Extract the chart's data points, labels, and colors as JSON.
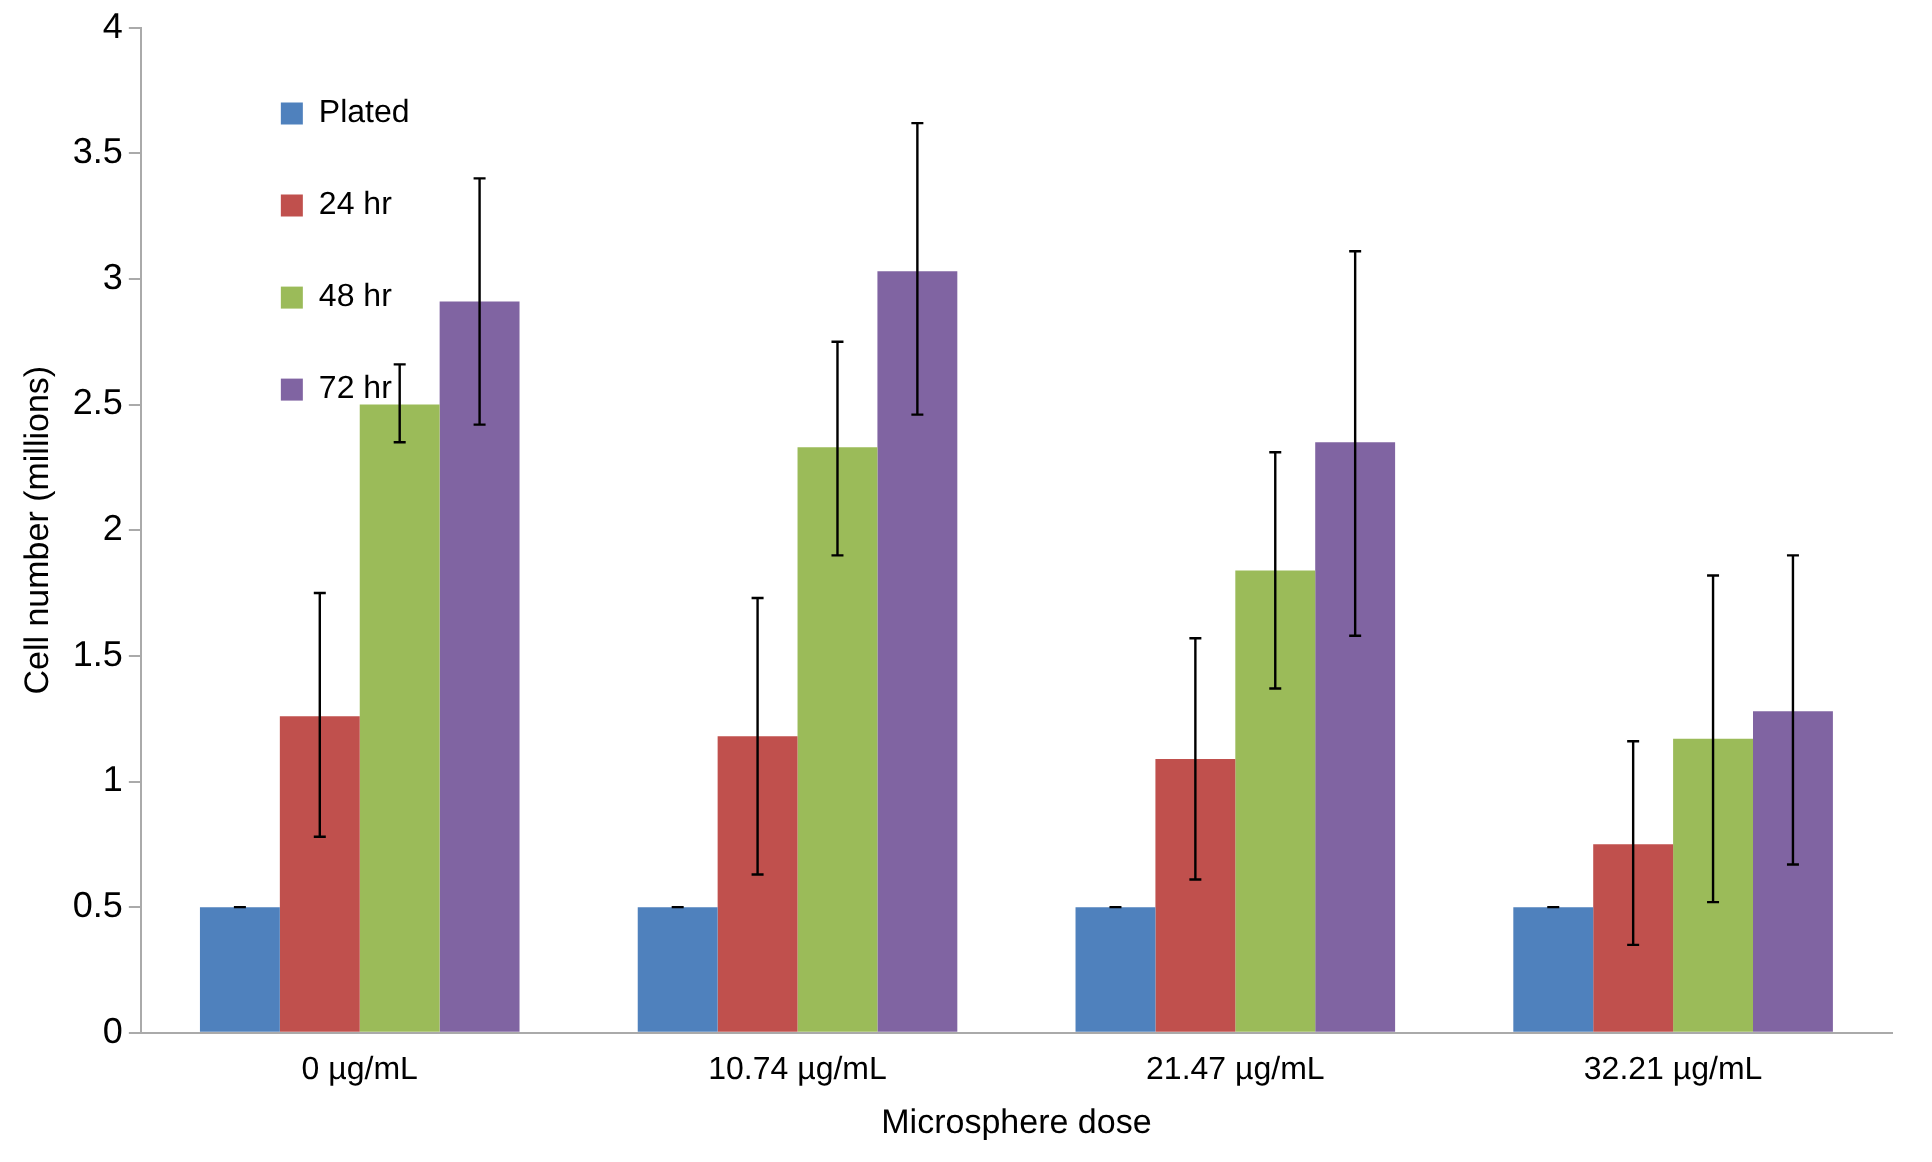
{
  "chart_data": {
    "type": "bar",
    "xlabel": "Microsphere dose",
    "ylabel": "Cell number (millions)",
    "categories": [
      "0 µg/mL",
      "10.74 µg/mL",
      "21.47 µg/mL",
      "32.21 µg/mL"
    ],
    "series": [
      {
        "name": "Plated",
        "color": "#4f81bd",
        "values": [
          0.5,
          0.5,
          0.5,
          0.5
        ],
        "errors": [
          0,
          0,
          0,
          0
        ]
      },
      {
        "name": "24 hr",
        "color": "#c0504d",
        "values": [
          1.26,
          1.18,
          1.09,
          0.75
        ],
        "errors": [
          [
            0.78,
            1.75
          ],
          [
            0.63,
            1.73
          ],
          [
            0.61,
            1.57
          ],
          [
            0.35,
            1.16
          ]
        ]
      },
      {
        "name": "48 hr",
        "color": "#9bbb59",
        "values": [
          2.5,
          2.33,
          1.84,
          1.17
        ],
        "errors": [
          [
            2.35,
            2.66
          ],
          [
            1.9,
            2.75
          ],
          [
            1.37,
            2.31
          ],
          [
            0.52,
            1.82
          ]
        ]
      },
      {
        "name": "72 hr",
        "color": "#8064a2",
        "values": [
          2.91,
          3.03,
          2.35,
          1.28
        ],
        "errors": [
          [
            2.42,
            3.4
          ],
          [
            2.46,
            3.62
          ],
          [
            1.58,
            3.11
          ],
          [
            0.67,
            1.9
          ]
        ]
      }
    ],
    "ylim": [
      0,
      4
    ],
    "yticks": [
      0,
      0.5,
      1,
      1.5,
      2,
      2.5,
      3,
      3.5,
      4
    ],
    "grid": false,
    "legend": "top left"
  }
}
